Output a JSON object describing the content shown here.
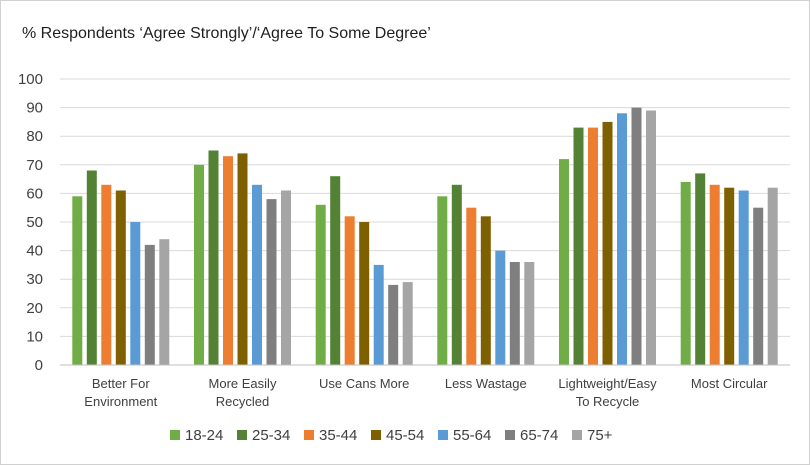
{
  "chart_data": {
    "type": "bar",
    "title": "% Respondents ‘Agree Strongly’/‘Agree To Some Degree’",
    "xlabel": "",
    "ylabel": "",
    "ylim": [
      0,
      100
    ],
    "yticks": [
      0,
      10,
      20,
      30,
      40,
      50,
      60,
      70,
      80,
      90,
      100
    ],
    "grid": true,
    "legend_position": "bottom",
    "categories": [
      [
        "Better For",
        "Environment"
      ],
      [
        "More Easily",
        "Recycled"
      ],
      [
        "Use Cans More"
      ],
      [
        "Less Wastage"
      ],
      [
        "Lightweight/Easy",
        "To Recycle"
      ],
      [
        "Most Circular"
      ]
    ],
    "series": [
      {
        "name": "18-24",
        "color": "#70ad47",
        "values": [
          59,
          70,
          56,
          59,
          72,
          64
        ]
      },
      {
        "name": "25-34",
        "color": "#548235",
        "values": [
          68,
          75,
          66,
          63,
          83,
          67
        ]
      },
      {
        "name": "35-44",
        "color": "#ed7d31",
        "values": [
          63,
          73,
          52,
          55,
          83,
          63
        ]
      },
      {
        "name": "45-54",
        "color": "#7f6000",
        "values": [
          61,
          74,
          50,
          52,
          85,
          62
        ]
      },
      {
        "name": "55-64",
        "color": "#5b9bd5",
        "values": [
          50,
          63,
          35,
          40,
          88,
          61
        ]
      },
      {
        "name": "65-74",
        "color": "#7f7f7f",
        "values": [
          42,
          58,
          28,
          36,
          90,
          55
        ]
      },
      {
        "name": "75+",
        "color": "#a5a5a5",
        "values": [
          44,
          61,
          29,
          36,
          89,
          62
        ]
      }
    ]
  }
}
